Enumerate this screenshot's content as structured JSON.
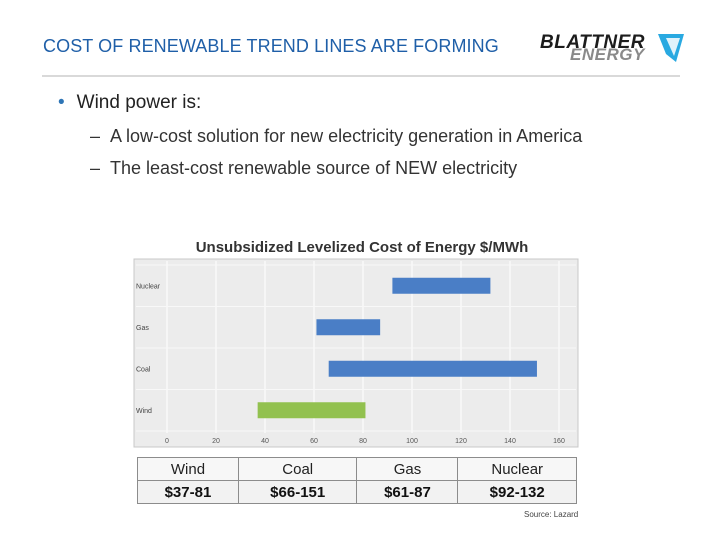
{
  "slide": {
    "title": "COST OF RENEWABLE TREND LINES ARE FORMING",
    "bullet": "Wind power is:",
    "sub_bullets": [
      "A low-cost solution for new electricity generation in America",
      "The least-cost renewable source of NEW electricity"
    ]
  },
  "logo": {
    "line1": "BLATTNER",
    "line2": "ENERGY"
  },
  "chart_data": {
    "type": "bar",
    "orientation": "horizontal-range",
    "title": "Unsubsidized Levelized Cost of Energy $/MWh",
    "categories": [
      "Nuclear",
      "Gas",
      "Coal",
      "Wind"
    ],
    "ranges": [
      {
        "name": "Nuclear",
        "low": 92,
        "high": 132,
        "color": "#4a7ec6"
      },
      {
        "name": "Gas",
        "low": 61,
        "high": 87,
        "color": "#4a7ec6"
      },
      {
        "name": "Coal",
        "low": 66,
        "high": 151,
        "color": "#4a7ec6"
      },
      {
        "name": "Wind",
        "low": 37,
        "high": 81,
        "color": "#92c14f"
      }
    ],
    "x_ticks": [
      0,
      20,
      40,
      60,
      80,
      100,
      120,
      140,
      160
    ],
    "xlim": [
      0,
      160
    ],
    "grid": true
  },
  "table": {
    "headers": [
      "Wind",
      "Coal",
      "Gas",
      "Nuclear"
    ],
    "values": [
      "$37-81",
      "$66-151",
      "$61-87",
      "$92-132"
    ]
  },
  "source": "Source: Lazard"
}
